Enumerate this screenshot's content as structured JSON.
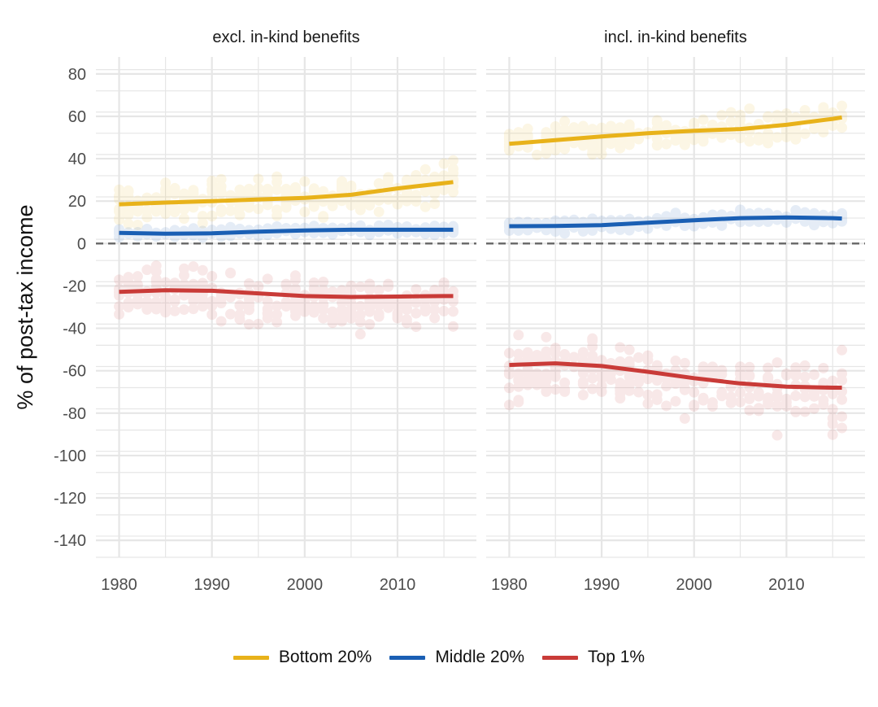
{
  "chart_data": {
    "type": "line",
    "ylabel": "% of post-tax income",
    "xlim": [
      1977.5,
      2018.5
    ],
    "ylim": [
      -148,
      88
    ],
    "x_ticks": [
      1980,
      1990,
      2000,
      2010
    ],
    "x_tick_labels": [
      "1980",
      "1990",
      "2000",
      "2010"
    ],
    "y_ticks": [
      80,
      60,
      40,
      20,
      0,
      -20,
      -40,
      -60,
      -80,
      -100,
      -120,
      -140
    ],
    "y_tick_labels": [
      "80",
      "60",
      "40",
      "20",
      "0",
      "-20",
      "-40",
      "-60",
      "-80",
      "-100",
      "-120",
      "-140"
    ],
    "reference_line": {
      "y": 0,
      "style": "dashed"
    },
    "grid": true,
    "legend_position": "bottom",
    "x": [
      1980,
      1985,
      1990,
      1995,
      2000,
      2005,
      2010,
      2015,
      2016
    ],
    "panels": [
      {
        "title": "excl. in-kind benefits",
        "series": [
          {
            "name": "Bottom 20%",
            "color": "#e8b21a",
            "values": [
              18.5,
              19.3,
              20.0,
              20.8,
              21.5,
              23.0,
              26.0,
              28.5,
              29.0
            ]
          },
          {
            "name": "Middle 20%",
            "color": "#1a5fb4",
            "values": [
              5.0,
              4.6,
              4.8,
              5.6,
              6.2,
              6.5,
              6.5,
              6.5,
              6.5
            ]
          },
          {
            "name": "Top 1%",
            "color": "#c93b38",
            "values": [
              -22.8,
              -22.0,
              -22.3,
              -23.5,
              -24.8,
              -25.2,
              -25.0,
              -24.8,
              -24.8
            ]
          }
        ],
        "scatter_spread": {
          "Bottom 20%": 16,
          "Middle 20%": 3.5,
          "Top 1%": 22
        }
      },
      {
        "title": "incl. in-kind benefits",
        "series": [
          {
            "name": "Bottom 20%",
            "color": "#e8b21a",
            "values": [
              47.0,
              48.8,
              50.5,
              52.0,
              53.2,
              54.0,
              56.0,
              58.8,
              59.5
            ]
          },
          {
            "name": "Middle 20%",
            "color": "#1a5fb4",
            "values": [
              8.2,
              8.3,
              8.7,
              9.8,
              11.0,
              12.0,
              12.3,
              12.0,
              11.8
            ]
          },
          {
            "name": "Top 1%",
            "color": "#c93b38",
            "values": [
              -57.3,
              -56.5,
              -57.8,
              -60.5,
              -63.5,
              -66.0,
              -67.5,
              -68.0,
              -68.0
            ]
          }
        ],
        "scatter_spread": {
          "Bottom 20%": 12,
          "Middle 20%": 5,
          "Top 1%": 28
        }
      }
    ],
    "legend": [
      {
        "name": "Bottom 20%",
        "color": "#e8b21a"
      },
      {
        "name": "Middle 20%",
        "color": "#1a5fb4"
      },
      {
        "name": "Top 1%",
        "color": "#c93b38"
      }
    ]
  }
}
